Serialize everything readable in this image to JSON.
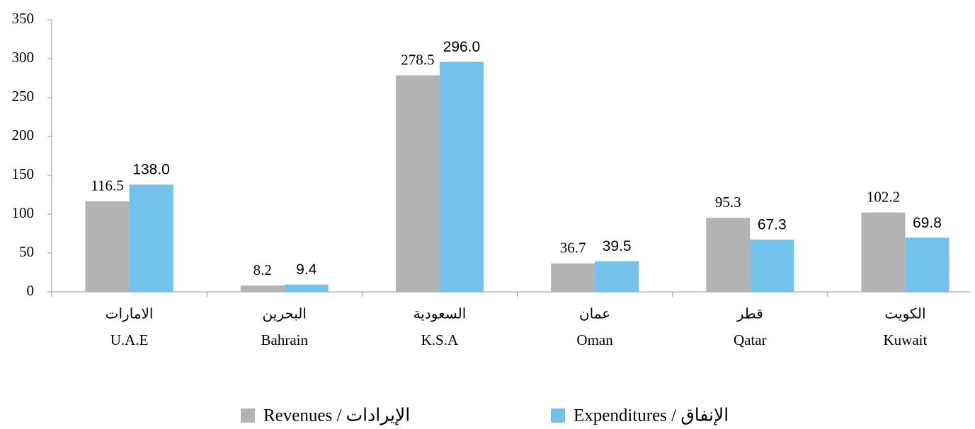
{
  "chart_data": {
    "type": "bar",
    "categories": [
      "U.A.E",
      "Bahrain",
      "K.S.A",
      "Oman",
      "Qatar",
      "Kuwait"
    ],
    "categories_ar": [
      "الامارات",
      "البحرين",
      "السعودية",
      "عمان",
      "قطر",
      "الكويت"
    ],
    "series": [
      {
        "name": "Revenues / الإيرادات",
        "color": "#b3b3b3",
        "values": [
          116.5,
          8.2,
          278.5,
          36.7,
          95.3,
          102.2
        ]
      },
      {
        "name": "Expenditures / الإنفاق",
        "color": "#72c2ec",
        "values": [
          138.0,
          9.4,
          296.0,
          39.5,
          67.3,
          69.8
        ],
        "value_labels": [
          "138.0",
          "9.4",
          "296.0",
          "39.5",
          "67.3",
          "69.8"
        ]
      }
    ],
    "ylim": [
      0,
      350
    ],
    "yticks": [
      0,
      50,
      100,
      150,
      200,
      250,
      300,
      350
    ],
    "grid": false
  }
}
